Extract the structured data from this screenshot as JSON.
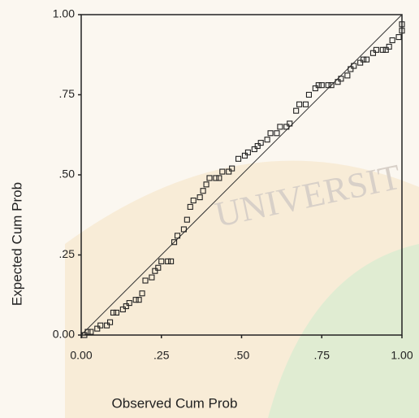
{
  "chart_data": {
    "type": "scatter",
    "x_label": "Observed Cum Prob",
    "y_label": "Expected Cum Prob",
    "watermark": "UNIVERSIT",
    "xlim": [
      0,
      1
    ],
    "ylim": [
      0,
      1
    ],
    "xticks": [
      {
        "value": 0,
        "label": "0.00"
      },
      {
        "value": 0.25,
        "label": ".25"
      },
      {
        "value": 0.5,
        "label": ".50"
      },
      {
        "value": 0.75,
        "label": ".75"
      },
      {
        "value": 1,
        "label": "1.00"
      }
    ],
    "yticks": [
      {
        "value": 0,
        "label": "0.00"
      },
      {
        "value": 0.25,
        "label": ".25"
      },
      {
        "value": 0.5,
        "label": ".50"
      },
      {
        "value": 0.75,
        "label": ".75"
      },
      {
        "value": 1,
        "label": "1.00"
      }
    ],
    "reference_line": true,
    "color": "#222222",
    "x": [
      0.01,
      0.02,
      0.03,
      0.05,
      0.06,
      0.08,
      0.09,
      0.1,
      0.11,
      0.13,
      0.14,
      0.15,
      0.17,
      0.18,
      0.19,
      0.2,
      0.22,
      0.23,
      0.24,
      0.25,
      0.27,
      0.28,
      0.29,
      0.3,
      0.32,
      0.33,
      0.34,
      0.35,
      0.37,
      0.38,
      0.39,
      0.4,
      0.42,
      0.43,
      0.44,
      0.46,
      0.47,
      0.49,
      0.51,
      0.52,
      0.54,
      0.55,
      0.56,
      0.58,
      0.59,
      0.61,
      0.62,
      0.64,
      0.65,
      0.67,
      0.68,
      0.7,
      0.71,
      0.73,
      0.74,
      0.75,
      0.77,
      0.78,
      0.8,
      0.81,
      0.83,
      0.84,
      0.85,
      0.87,
      0.88,
      0.89,
      0.91,
      0.92,
      0.94,
      0.95,
      0.96,
      0.97,
      0.99,
      1.0,
      1.0
    ],
    "values": [
      0.0,
      0.01,
      0.01,
      0.02,
      0.03,
      0.03,
      0.04,
      0.07,
      0.07,
      0.08,
      0.09,
      0.1,
      0.11,
      0.11,
      0.13,
      0.17,
      0.18,
      0.2,
      0.21,
      0.23,
      0.23,
      0.23,
      0.29,
      0.31,
      0.33,
      0.36,
      0.4,
      0.42,
      0.43,
      0.45,
      0.47,
      0.49,
      0.49,
      0.49,
      0.51,
      0.51,
      0.52,
      0.55,
      0.56,
      0.57,
      0.58,
      0.59,
      0.6,
      0.61,
      0.63,
      0.63,
      0.65,
      0.65,
      0.66,
      0.7,
      0.72,
      0.72,
      0.75,
      0.77,
      0.78,
      0.78,
      0.78,
      0.78,
      0.79,
      0.8,
      0.81,
      0.83,
      0.84,
      0.85,
      0.86,
      0.86,
      0.88,
      0.89,
      0.89,
      0.89,
      0.9,
      0.92,
      0.93,
      0.95,
      0.97
    ]
  }
}
